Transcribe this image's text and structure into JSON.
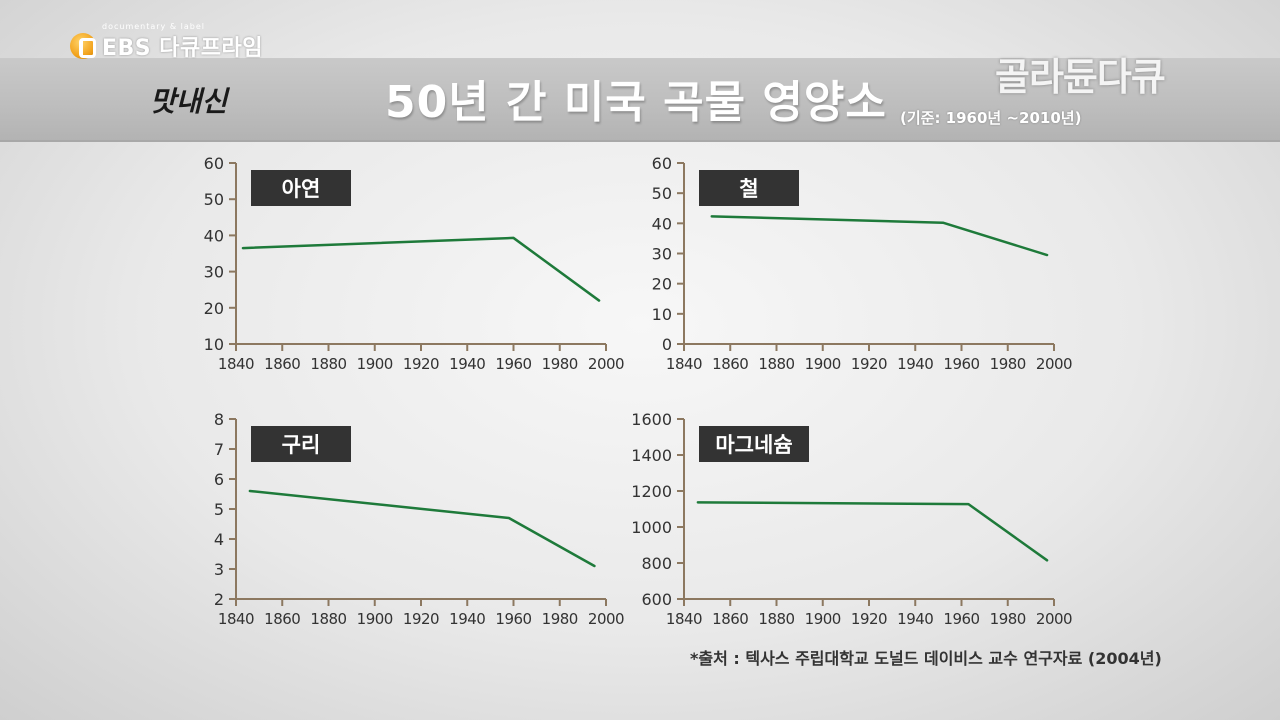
{
  "header": {
    "ebs_brand": "EBS 다큐프라임",
    "ebs_small": "documentary & label",
    "signature": "맛내신",
    "title": "50년 간 미국 곡물 영양소",
    "subtitle": "(기준: 1960년 ~2010년)",
    "corner_logo": "골라듄다큐"
  },
  "source": "*출처 : 텍사스 주립대학교 도널드 데이비스 교수 연구자료 (2004년)",
  "colors": {
    "line": "#1e7a3a",
    "axis": "#8c7860",
    "tick_text": "#333333",
    "label_box": "#333333",
    "label_text": "#ffffff"
  },
  "chart_data": [
    {
      "type": "line",
      "label": "아연",
      "title": "",
      "xlabel": "",
      "ylabel": "",
      "xlim": [
        1840,
        2000
      ],
      "ylim": [
        10,
        60
      ],
      "xticks": [
        "1840",
        "1860",
        "1880",
        "1900",
        "1920",
        "1940",
        "1960",
        "1980",
        "2000"
      ],
      "yticks": [
        "10",
        "20",
        "30",
        "40",
        "50",
        "60"
      ],
      "x": [
        1843,
        1960,
        1997
      ],
      "y": [
        36.5,
        39.3,
        22
      ]
    },
    {
      "type": "line",
      "label": "철",
      "title": "",
      "xlabel": "",
      "ylabel": "",
      "xlim": [
        1840,
        2000
      ],
      "ylim": [
        0,
        60
      ],
      "xticks": [
        "1840",
        "1860",
        "1880",
        "1900",
        "1920",
        "1940",
        "1960",
        "1980",
        "2000"
      ],
      "yticks": [
        "0",
        "10",
        "20",
        "30",
        "40",
        "50",
        "60"
      ],
      "x": [
        1852,
        1952,
        1997
      ],
      "y": [
        42.3,
        40.2,
        29.5
      ]
    },
    {
      "type": "line",
      "label": "구리",
      "title": "",
      "xlabel": "",
      "ylabel": "",
      "xlim": [
        1840,
        2000
      ],
      "ylim": [
        2,
        8
      ],
      "xticks": [
        "1840",
        "1860",
        "1880",
        "1900",
        "1920",
        "1940",
        "1960",
        "1980",
        "2000"
      ],
      "yticks": [
        "2",
        "3",
        "4",
        "5",
        "6",
        "7",
        "8"
      ],
      "x": [
        1846,
        1958,
        1995
      ],
      "y": [
        5.6,
        4.7,
        3.1
      ]
    },
    {
      "type": "line",
      "label": "마그네슘",
      "title": "",
      "xlabel": "",
      "ylabel": "",
      "xlim": [
        1840,
        2000
      ],
      "ylim": [
        600,
        1600
      ],
      "xticks": [
        "1840",
        "1860",
        "1880",
        "1900",
        "1920",
        "1940",
        "1960",
        "1980",
        "2000"
      ],
      "yticks": [
        "600",
        "800",
        "1000",
        "1200",
        "1400",
        "1600"
      ],
      "x": [
        1846,
        1963,
        1997
      ],
      "y": [
        1137,
        1127,
        815
      ]
    }
  ]
}
